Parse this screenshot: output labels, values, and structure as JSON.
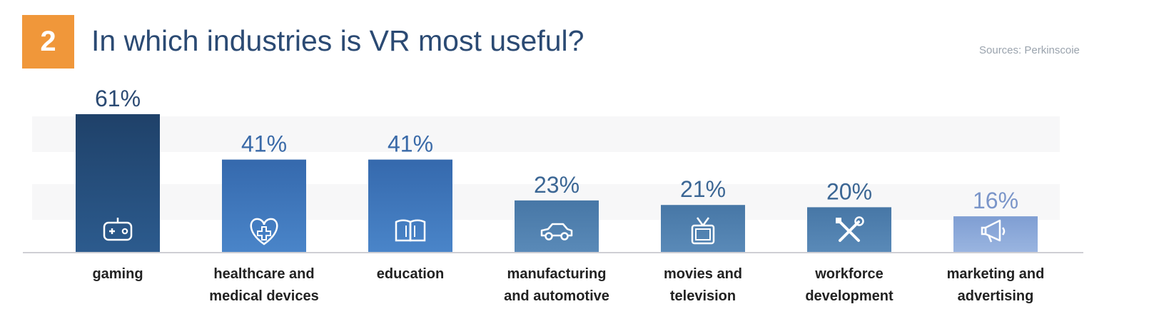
{
  "header": {
    "badge_number": "2",
    "title": "In which industries is VR most useful?",
    "source": "Sources: Perkinscoie"
  },
  "chart_data": {
    "type": "bar",
    "title": "In which industries is VR most useful?",
    "ylim": [
      0,
      61
    ],
    "categories": [
      [
        "gaming"
      ],
      [
        "healthcare and",
        "medical devices"
      ],
      [
        "education"
      ],
      [
        "manufacturing",
        "and automotive"
      ],
      [
        "movies and",
        "television"
      ],
      [
        "workforce",
        "development"
      ],
      [
        "marketing and",
        "advertising"
      ]
    ],
    "values": [
      61,
      41,
      41,
      23,
      21,
      20,
      16
    ],
    "value_labels": [
      "61%",
      "41%",
      "41%",
      "23%",
      "21%",
      "20%",
      "16%"
    ],
    "icons": [
      "gamepad-icon",
      "heart-plus-icon",
      "book-icon",
      "car-icon",
      "tv-icon",
      "tools-icon",
      "megaphone-icon"
    ],
    "bar_colors": [
      [
        "#2c5b8e",
        "#1f4169"
      ],
      [
        "#4a85c9",
        "#3569ad"
      ],
      [
        "#4a85c9",
        "#3569ad"
      ],
      [
        "#5a8ab8",
        "#4777a6"
      ],
      [
        "#5a8ab8",
        "#4777a6"
      ],
      [
        "#5a8ab8",
        "#4777a6"
      ],
      [
        "#9ab5e0",
        "#7f9ed3"
      ]
    ],
    "label_colors": [
      "#2b4a73",
      "#3a6aa8",
      "#3a6aa8",
      "#3b6694",
      "#3b6694",
      "#3b6694",
      "#7a95c9"
    ]
  }
}
